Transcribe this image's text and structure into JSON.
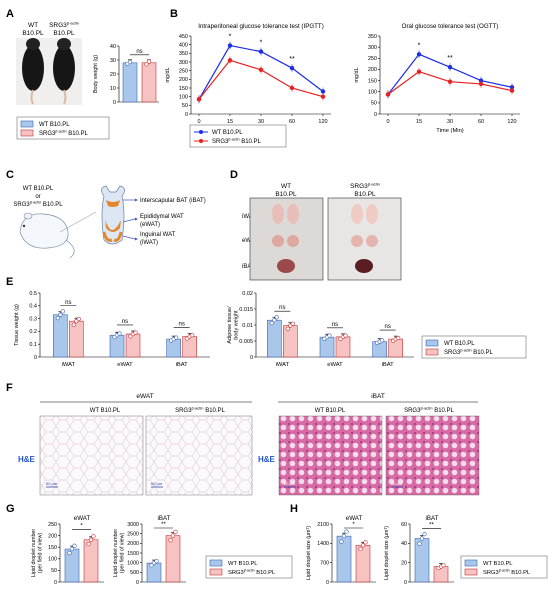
{
  "colors": {
    "wt": "#a9c7ea",
    "wt_edge": "#3c64b4",
    "ko": "#f6c2c2",
    "ko_edge": "#c83232",
    "line_wt": "#1c2ee8",
    "line_ko": "#e82020",
    "he": "#2255cc",
    "pink": "#e3a6c6"
  },
  "panel_letters": [
    "A",
    "B",
    "C",
    "D",
    "E",
    "F",
    "G",
    "H"
  ],
  "legend": {
    "wt": "WT B10.PL",
    "ko": "SRG3",
    "ko_sup": "β-actin",
    "ko_tail": " B10.PL"
  },
  "panelA": {
    "photo_wt": "WT",
    "photo_wt2": "B10.PL",
    "photo_ko": "SRG3",
    "photo_ko_sup": "β-actin",
    "photo_ko2": "B10.PL"
  },
  "panelC": {
    "line1": "WT B10.PL",
    "line2": "or",
    "line3": "SRG3",
    "line3_sup": "β-actin",
    "line3_tail": " B10.PL",
    "bat": "Interscapular BAT (iBAT)",
    "ewat1": "Epididymal WAT",
    "ewat2": "(eWAT)",
    "iwat1": "Inguinal WAT",
    "iwat2": "(iWAT)"
  },
  "panelD": {
    "col_wt1": "WT",
    "col_wt2": "B10.PL",
    "col_ko1": "SRG3",
    "col_ko_sup": "β-actin",
    "col_ko2": "B10.PL",
    "rows": [
      "iWAT",
      "eWAT",
      "iBAT"
    ]
  },
  "panelF": {
    "group1": "eWAT",
    "group2": "iBAT",
    "stain": "H&E",
    "col_wt": "WT B10.PL",
    "col_ko": "SRG3",
    "col_ko_sup": "β-actin",
    "col_ko_tail": " B10.PL",
    "scale": "60 μm"
  },
  "chart_data": [
    {
      "id": "A-body-weight",
      "type": "bar",
      "ylabel": "Body weight (g)",
      "ylim": [
        0,
        40
      ],
      "yticks": [
        0,
        10,
        20,
        30,
        40
      ],
      "values": {
        "wt": 28,
        "ko": 28
      },
      "points": {
        "wt": [
          27.2,
          28.6
        ],
        "ko": [
          27.0,
          28.8
        ]
      },
      "sig": "ns"
    },
    {
      "id": "B-ipgtt",
      "type": "line",
      "title": "Intraperitoneal glucose tolerance test (IPGTT)",
      "xlabel": "Time (Min)",
      "ylabel": "mg/dL",
      "x": [
        0,
        15,
        30,
        60,
        120
      ],
      "ylim": [
        0,
        450
      ],
      "yticks": [
        0,
        50,
        100,
        150,
        200,
        250,
        300,
        350,
        400,
        450
      ],
      "series": [
        {
          "key": "wt",
          "values": [
            85,
            395,
            360,
            265,
            130
          ]
        },
        {
          "key": "ko",
          "values": [
            85,
            310,
            255,
            150,
            100
          ]
        }
      ],
      "sig": [
        {
          "x": 15,
          "text": "*"
        },
        {
          "x": 30,
          "text": "*"
        },
        {
          "x": 60,
          "text": "**"
        }
      ]
    },
    {
      "id": "B-ogtt",
      "type": "line",
      "title": "Oral glucose tolerance test (OGTT)",
      "xlabel": "Time (Min)",
      "ylabel": "mg/dL",
      "x": [
        0,
        15,
        30,
        60,
        120
      ],
      "ylim": [
        0,
        350
      ],
      "yticks": [
        0,
        50,
        100,
        150,
        200,
        250,
        300,
        350
      ],
      "series": [
        {
          "key": "wt",
          "values": [
            88,
            268,
            210,
            150,
            120
          ]
        },
        {
          "key": "ko",
          "values": [
            88,
            190,
            145,
            135,
            105
          ]
        }
      ],
      "sig": [
        {
          "x": 15,
          "text": "*"
        },
        {
          "x": 30,
          "text": "**"
        }
      ]
    },
    {
      "id": "E-tissue-weight",
      "type": "bar",
      "ylabel": "Tissue weight (g)",
      "ylim": [
        0,
        0.5
      ],
      "yticks": [
        "0",
        "0.1",
        "0.2",
        "0.3",
        "0.4",
        "0.5"
      ],
      "categories": [
        "iWAT",
        "eWAT",
        "iBAT"
      ],
      "wt": [
        0.33,
        0.17,
        0.14
      ],
      "ko": [
        0.28,
        0.18,
        0.16
      ],
      "sig": [
        "ns",
        "ns",
        "ns"
      ]
    },
    {
      "id": "E-adipose-ratio",
      "type": "bar",
      "ylabel": "Adipose tissue/ body weight",
      "ylim": [
        0,
        0.02
      ],
      "yticks": [
        "0",
        "0.005",
        "0.01",
        "0.015",
        "0.02"
      ],
      "categories": [
        "iWAT",
        "eWAT",
        "iBAT"
      ],
      "wt": [
        0.0115,
        0.0062,
        0.0048
      ],
      "ko": [
        0.0098,
        0.0063,
        0.0056
      ],
      "sig": [
        "ns",
        "ns",
        "ns"
      ]
    },
    {
      "id": "G-ewat",
      "type": "bar",
      "title": "eWAT",
      "ylabel": "Lipid droplet number (per field of view)",
      "ylim": [
        0,
        250
      ],
      "yticks": [
        0,
        50,
        100,
        150,
        200,
        250
      ],
      "wt": 142,
      "ko": 182,
      "sig": "*"
    },
    {
      "id": "G-ibat",
      "type": "bar",
      "title": "iBAT",
      "ylabel": "Lipid droplet number (per field of view)",
      "ylim": [
        0,
        3000
      ],
      "yticks": [
        0,
        500,
        1000,
        1500,
        2000,
        2500,
        3000
      ],
      "wt": 980,
      "ko": 2400,
      "sig": "**"
    },
    {
      "id": "H-ewat",
      "type": "bar",
      "title": "eWAT",
      "ylabel": "Lipid droplet size (μm²)",
      "ylim": [
        0,
        2100
      ],
      "yticks": [
        0,
        700,
        1400,
        2100
      ],
      "wt": 1660,
      "ko": 1330,
      "sig": "*"
    },
    {
      "id": "H-ibat",
      "type": "bar",
      "title": "iBAT",
      "ylabel": "Lipid droplet size (μm²)",
      "ylim": [
        0,
        60
      ],
      "yticks": [
        0,
        20,
        40,
        60
      ],
      "wt": 45,
      "ko": 16,
      "sig": "**"
    }
  ]
}
